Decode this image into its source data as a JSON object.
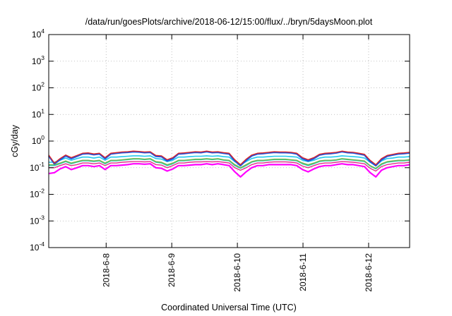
{
  "chart_data": {
    "type": "line",
    "title": "/data/run/goesPlots/archive/2018-06-12/15:00/flux/../bryn/5daysMoon.plot",
    "xlabel": "Coordinated Universal Time (UTC)",
    "ylabel": "cGy/day",
    "yscale": "log",
    "ylim": [
      0.0001,
      10000
    ],
    "xlim": [
      "2018-06-07T03:00",
      "2018-06-12T15:00"
    ],
    "ytick_bases": [
      "10",
      "10",
      "10",
      "10",
      "10",
      "10",
      "10",
      "10",
      "10"
    ],
    "ytick_exponents": [
      "-4",
      "-3",
      "-2",
      "-1",
      "0",
      "1",
      "2",
      "3",
      "4"
    ],
    "ytick_values": [
      0.0001,
      0.001,
      0.01,
      0.1,
      1,
      10,
      100,
      1000,
      10000
    ],
    "xtick_labels": [
      "2018-6-8",
      "2018-6-9",
      "2018-6-10",
      "2018-6-11",
      "2018-6-12"
    ],
    "xtick_values": [
      "2018-06-08",
      "2018-06-09",
      "2018-06-10",
      "2018-06-11",
      "2018-06-12"
    ],
    "grid": true,
    "legend": "none",
    "series_colors": [
      "#ff00ff",
      "#e0308a",
      "#22c8b0",
      "#7ab648",
      "#22c8ee",
      "#2255dd",
      "#dd2222"
    ],
    "series": [
      {
        "values": [
          0.06,
          0.065,
          0.09,
          0.11,
          0.085,
          0.1,
          0.12,
          0.12,
          0.11,
          0.12,
          0.085,
          0.12,
          0.12,
          0.125,
          0.13,
          0.14,
          0.14,
          0.135,
          0.14,
          0.1,
          0.095,
          0.075,
          0.09,
          0.12,
          0.12,
          0.125,
          0.13,
          0.13,
          0.14,
          0.13,
          0.14,
          0.13,
          0.12,
          0.07,
          0.045,
          0.07,
          0.1,
          0.12,
          0.12,
          0.13,
          0.13,
          0.13,
          0.13,
          0.13,
          0.12,
          0.085,
          0.07,
          0.09,
          0.11,
          0.12,
          0.12,
          0.13,
          0.14,
          0.13,
          0.13,
          0.12,
          0.11,
          0.065,
          0.045,
          0.08,
          0.1,
          0.11,
          0.12,
          0.12,
          0.13
        ]
      },
      {
        "values": [
          0.1,
          0.1,
          0.12,
          0.14,
          0.12,
          0.13,
          0.15,
          0.15,
          0.14,
          0.15,
          0.12,
          0.15,
          0.15,
          0.16,
          0.165,
          0.17,
          0.17,
          0.165,
          0.17,
          0.13,
          0.125,
          0.1,
          0.12,
          0.15,
          0.15,
          0.16,
          0.165,
          0.165,
          0.17,
          0.165,
          0.17,
          0.16,
          0.15,
          0.1,
          0.08,
          0.1,
          0.13,
          0.15,
          0.15,
          0.16,
          0.165,
          0.165,
          0.165,
          0.16,
          0.15,
          0.115,
          0.1,
          0.12,
          0.14,
          0.15,
          0.15,
          0.16,
          0.17,
          0.165,
          0.16,
          0.15,
          0.14,
          0.095,
          0.075,
          0.11,
          0.13,
          0.14,
          0.15,
          0.15,
          0.16
        ]
      },
      {
        "values": [
          0.12,
          0.12,
          0.14,
          0.17,
          0.14,
          0.16,
          0.18,
          0.18,
          0.17,
          0.18,
          0.14,
          0.18,
          0.18,
          0.19,
          0.2,
          0.21,
          0.21,
          0.2,
          0.21,
          0.16,
          0.15,
          0.12,
          0.14,
          0.18,
          0.18,
          0.19,
          0.2,
          0.2,
          0.21,
          0.2,
          0.21,
          0.19,
          0.18,
          0.12,
          0.095,
          0.12,
          0.16,
          0.18,
          0.18,
          0.19,
          0.2,
          0.2,
          0.2,
          0.19,
          0.18,
          0.14,
          0.12,
          0.14,
          0.17,
          0.18,
          0.18,
          0.19,
          0.21,
          0.2,
          0.19,
          0.18,
          0.17,
          0.115,
          0.09,
          0.13,
          0.16,
          0.17,
          0.18,
          0.18,
          0.19
        ]
      },
      {
        "values": [
          0.13,
          0.13,
          0.15,
          0.18,
          0.15,
          0.17,
          0.19,
          0.19,
          0.18,
          0.19,
          0.15,
          0.19,
          0.19,
          0.2,
          0.21,
          0.22,
          0.22,
          0.21,
          0.22,
          0.17,
          0.16,
          0.13,
          0.15,
          0.19,
          0.19,
          0.2,
          0.21,
          0.21,
          0.22,
          0.21,
          0.22,
          0.2,
          0.19,
          0.13,
          0.1,
          0.13,
          0.17,
          0.19,
          0.19,
          0.2,
          0.21,
          0.21,
          0.21,
          0.2,
          0.19,
          0.15,
          0.13,
          0.15,
          0.18,
          0.19,
          0.19,
          0.2,
          0.22,
          0.21,
          0.2,
          0.19,
          0.18,
          0.12,
          0.095,
          0.14,
          0.17,
          0.18,
          0.19,
          0.19,
          0.2
        ]
      },
      {
        "values": [
          0.16,
          0.16,
          0.19,
          0.23,
          0.19,
          0.22,
          0.25,
          0.25,
          0.23,
          0.25,
          0.19,
          0.25,
          0.25,
          0.26,
          0.27,
          0.28,
          0.28,
          0.27,
          0.28,
          0.22,
          0.21,
          0.17,
          0.19,
          0.25,
          0.25,
          0.26,
          0.27,
          0.27,
          0.28,
          0.27,
          0.28,
          0.26,
          0.25,
          0.17,
          0.13,
          0.17,
          0.22,
          0.25,
          0.25,
          0.26,
          0.27,
          0.27,
          0.27,
          0.26,
          0.25,
          0.19,
          0.17,
          0.19,
          0.23,
          0.25,
          0.25,
          0.26,
          0.28,
          0.27,
          0.26,
          0.25,
          0.23,
          0.16,
          0.12,
          0.18,
          0.22,
          0.23,
          0.25,
          0.25,
          0.26
        ]
      },
      {
        "values": [
          0.28,
          0.14,
          0.2,
          0.28,
          0.22,
          0.27,
          0.33,
          0.34,
          0.31,
          0.33,
          0.22,
          0.33,
          0.35,
          0.37,
          0.38,
          0.4,
          0.39,
          0.37,
          0.38,
          0.27,
          0.26,
          0.18,
          0.22,
          0.33,
          0.34,
          0.36,
          0.38,
          0.37,
          0.4,
          0.37,
          0.38,
          0.35,
          0.33,
          0.18,
          0.12,
          0.19,
          0.28,
          0.33,
          0.34,
          0.36,
          0.38,
          0.37,
          0.37,
          0.36,
          0.33,
          0.22,
          0.18,
          0.22,
          0.3,
          0.33,
          0.34,
          0.36,
          0.4,
          0.37,
          0.36,
          0.33,
          0.3,
          0.17,
          0.12,
          0.2,
          0.27,
          0.3,
          0.33,
          0.34,
          0.36
        ]
      },
      {
        "values": [
          0.3,
          0.15,
          0.22,
          0.3,
          0.24,
          0.29,
          0.35,
          0.36,
          0.33,
          0.35,
          0.24,
          0.35,
          0.37,
          0.39,
          0.4,
          0.42,
          0.41,
          0.39,
          0.4,
          0.29,
          0.28,
          0.2,
          0.24,
          0.35,
          0.36,
          0.38,
          0.4,
          0.39,
          0.42,
          0.39,
          0.4,
          0.37,
          0.35,
          0.2,
          0.13,
          0.21,
          0.3,
          0.35,
          0.36,
          0.38,
          0.4,
          0.39,
          0.39,
          0.38,
          0.35,
          0.24,
          0.2,
          0.24,
          0.32,
          0.35,
          0.36,
          0.38,
          0.42,
          0.39,
          0.38,
          0.35,
          0.32,
          0.19,
          0.13,
          0.22,
          0.29,
          0.32,
          0.35,
          0.36,
          0.38
        ]
      }
    ]
  }
}
